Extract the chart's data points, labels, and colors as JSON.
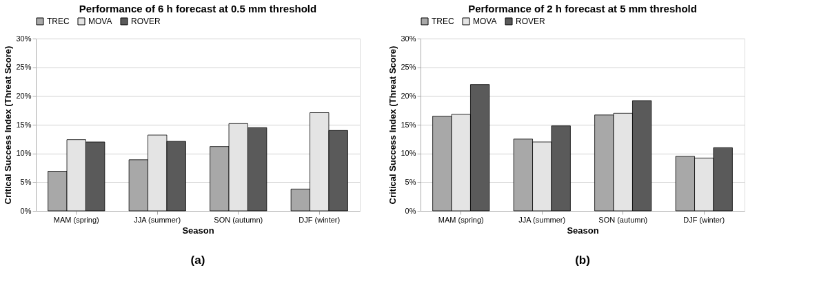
{
  "chart_data": [
    {
      "type": "bar",
      "title": "Performance of 6 h forecast at 0.5 mm threshold",
      "xlabel": "Season",
      "ylabel": "Critical Success Index (Threat Score)",
      "categories": [
        "MAM (spring)",
        "JJA (summer)",
        "SON (autumn)",
        "DJF (winter)"
      ],
      "series": [
        {
          "name": "TREC",
          "color": "#a8a8a8",
          "values": [
            6.9,
            8.9,
            11.2,
            3.8
          ]
        },
        {
          "name": "MOVA",
          "color": "#e4e4e4",
          "values": [
            12.4,
            13.2,
            15.2,
            17.1
          ]
        },
        {
          "name": "ROVER",
          "color": "#5a5a5a",
          "values": [
            12.0,
            12.1,
            14.5,
            14.0
          ]
        }
      ],
      "ylim": [
        0,
        30
      ],
      "yticks": [
        {
          "value": 0,
          "label": "0%"
        },
        {
          "value": 5,
          "label": "5%"
        },
        {
          "value": 10,
          "label": "10%"
        },
        {
          "value": 15,
          "label": "15%"
        },
        {
          "value": 20,
          "label": "20%"
        },
        {
          "value": 25,
          "label": "25%"
        },
        {
          "value": 30,
          "label": "30%"
        }
      ],
      "grid": "y",
      "legend": "top",
      "annotations": [
        "(a)"
      ]
    },
    {
      "type": "bar",
      "title": "Performance of 2 h forecast at 5 mm threshold",
      "xlabel": "Season",
      "ylabel": "Critical Success Index (Threat Score)",
      "categories": [
        "MAM (spring)",
        "JJA (summer)",
        "SON (autumn)",
        "DJF (winter)"
      ],
      "series": [
        {
          "name": "TREC",
          "color": "#a8a8a8",
          "values": [
            16.5,
            12.5,
            16.7,
            9.5
          ]
        },
        {
          "name": "MOVA",
          "color": "#e4e4e4",
          "values": [
            16.8,
            12.0,
            17.0,
            9.2
          ]
        },
        {
          "name": "ROVER",
          "color": "#5a5a5a",
          "values": [
            22.0,
            14.8,
            19.2,
            11.0
          ]
        }
      ],
      "ylim": [
        0,
        30
      ],
      "yticks": [
        {
          "value": 0,
          "label": "0%"
        },
        {
          "value": 5,
          "label": "5%"
        },
        {
          "value": 10,
          "label": "10%"
        },
        {
          "value": 15,
          "label": "15%"
        },
        {
          "value": 20,
          "label": "20%"
        },
        {
          "value": 25,
          "label": "25%"
        },
        {
          "value": 30,
          "label": "30%"
        }
      ],
      "grid": "y",
      "legend": "top",
      "annotations": [
        "(b)"
      ]
    }
  ]
}
